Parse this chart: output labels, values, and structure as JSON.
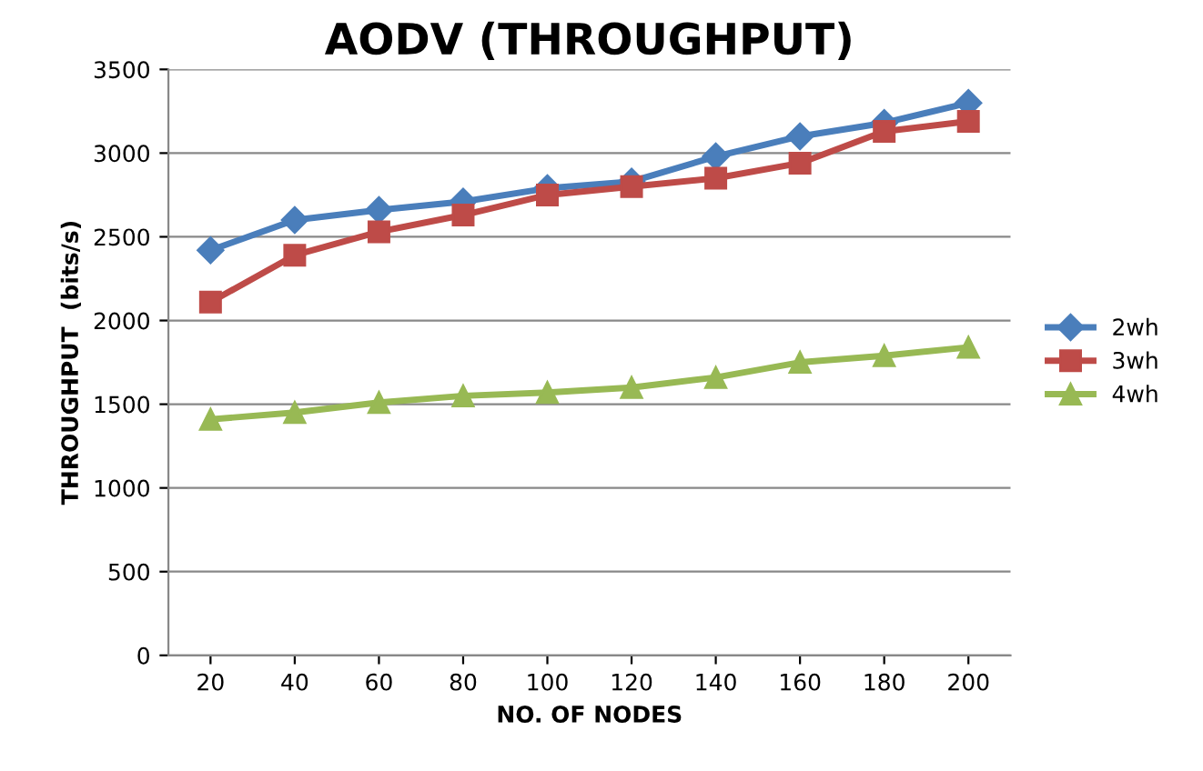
{
  "chart_data": {
    "type": "line",
    "title": "AODV (THROUGHPUT)",
    "xlabel": "NO. OF NODES",
    "ylabel": "THROUGHPUT  (bits/s)",
    "categories": [
      "20",
      "40",
      "60",
      "80",
      "100",
      "120",
      "140",
      "160",
      "180",
      "200"
    ],
    "series": [
      {
        "name": "2wh",
        "color": "#4a7ebb",
        "marker": "diamond",
        "values": [
          2420,
          2600,
          2660,
          2710,
          2790,
          2830,
          2980,
          3100,
          3180,
          3300
        ]
      },
      {
        "name": "3wh",
        "color": "#be4b48",
        "marker": "square",
        "values": [
          2110,
          2390,
          2530,
          2630,
          2750,
          2800,
          2850,
          2940,
          3130,
          3190
        ]
      },
      {
        "name": "4wh",
        "color": "#98b954",
        "marker": "triangle",
        "values": [
          1410,
          1450,
          1510,
          1550,
          1570,
          1600,
          1660,
          1750,
          1790,
          1840
        ]
      }
    ],
    "ylim": [
      0,
      3500
    ],
    "yticks": [
      0,
      500,
      1000,
      1500,
      2000,
      2500,
      3000,
      3500
    ],
    "grid": "y",
    "legend": "right",
    "line_style": "solid"
  }
}
